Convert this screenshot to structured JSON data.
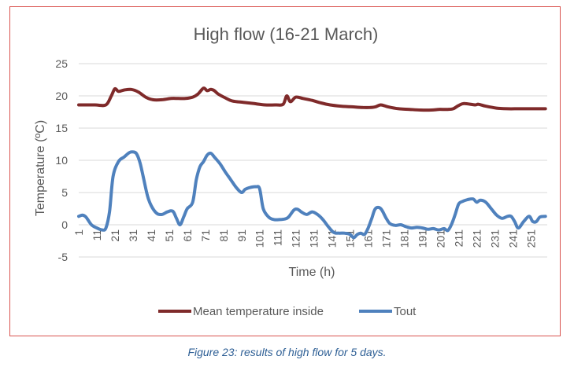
{
  "caption": "Figure 23: results of high flow for 5 days.",
  "chart_data": {
    "type": "line",
    "title": "High flow (16-21 March)",
    "xlabel": "Time (h)",
    "ylabel": "Temperature (ºC)",
    "xlim": [
      1,
      260
    ],
    "ylim": [
      -5,
      25
    ],
    "yticks": [
      -5,
      0,
      5,
      10,
      15,
      20,
      25
    ],
    "xticks": [
      1,
      11,
      21,
      31,
      41,
      51,
      61,
      71,
      81,
      91,
      101,
      111,
      121,
      131,
      141,
      151,
      161,
      171,
      181,
      191,
      201,
      211,
      221,
      231,
      241,
      251
    ],
    "grid": "horizontal",
    "legend": "bottom",
    "series": [
      {
        "name": "Mean temperature inside",
        "color": "#7f2a2a",
        "x": [
          1,
          10,
          16,
          19,
          21,
          23,
          26,
          30,
          34,
          38,
          42,
          47,
          52,
          56,
          60,
          64,
          67,
          70,
          72,
          74,
          76,
          78,
          82,
          86,
          92,
          98,
          104,
          110,
          114,
          116,
          118,
          121,
          125,
          130,
          135,
          140,
          146,
          152,
          158,
          162,
          165,
          168,
          172,
          178,
          184,
          190,
          196,
          200,
          205,
          208,
          211,
          214,
          220,
          222,
          226,
          232,
          238,
          244,
          250,
          256,
          259
        ],
        "values": [
          18.6,
          18.6,
          18.6,
          20.0,
          21.1,
          20.7,
          20.9,
          21.0,
          20.6,
          19.8,
          19.4,
          19.4,
          19.6,
          19.6,
          19.6,
          19.8,
          20.3,
          21.2,
          20.8,
          21.0,
          20.8,
          20.3,
          19.7,
          19.2,
          19.0,
          18.8,
          18.6,
          18.6,
          18.7,
          20.0,
          19.1,
          19.8,
          19.6,
          19.3,
          18.9,
          18.6,
          18.4,
          18.3,
          18.2,
          18.2,
          18.3,
          18.6,
          18.3,
          18.0,
          17.9,
          17.8,
          17.8,
          17.9,
          17.9,
          18.0,
          18.5,
          18.8,
          18.6,
          18.7,
          18.4,
          18.1,
          18.0,
          18.0,
          18.0,
          18.0,
          18.0
        ]
      },
      {
        "name": "Tout",
        "color": "#4f81bd",
        "x": [
          1,
          3,
          5,
          8,
          11,
          14,
          16,
          18,
          20,
          23,
          26,
          29,
          31,
          33,
          35,
          37,
          39,
          41,
          44,
          47,
          50,
          53,
          55,
          57,
          59,
          61,
          64,
          66,
          68,
          70,
          72,
          74,
          76,
          79,
          82,
          85,
          88,
          91,
          93,
          96,
          99,
          101,
          103,
          106,
          109,
          112,
          115,
          117,
          120,
          122,
          124,
          127,
          130,
          133,
          136,
          139,
          142,
          145,
          148,
          151,
          153,
          155,
          157,
          159,
          161,
          163,
          165,
          168,
          171,
          173,
          176,
          179,
          182,
          185,
          188,
          191,
          194,
          197,
          200,
          203,
          205,
          207,
          209,
          211,
          213,
          216,
          219,
          221,
          223,
          226,
          229,
          232,
          235,
          238,
          240,
          242,
          244,
          247,
          250,
          252,
          254,
          256,
          259
        ],
        "values": [
          1.3,
          1.5,
          1.2,
          0.0,
          -0.5,
          -0.8,
          -0.5,
          2.0,
          7.5,
          9.8,
          10.5,
          11.2,
          11.3,
          11.0,
          9.5,
          7.0,
          4.5,
          3.0,
          1.8,
          1.6,
          2.0,
          2.1,
          1.0,
          0.0,
          1.2,
          2.5,
          3.5,
          7.0,
          9.0,
          9.8,
          10.8,
          11.1,
          10.5,
          9.5,
          8.2,
          7.0,
          5.8,
          5.0,
          5.5,
          5.8,
          5.9,
          5.6,
          2.5,
          1.2,
          0.8,
          0.8,
          0.9,
          1.2,
          2.3,
          2.4,
          2.0,
          1.6,
          2.0,
          1.6,
          0.8,
          -0.3,
          -1.2,
          -1.3,
          -1.3,
          -1.5,
          -2.0,
          -1.5,
          -1.3,
          -1.5,
          -0.5,
          1.0,
          2.5,
          2.5,
          1.0,
          0.2,
          -0.1,
          0.0,
          -0.3,
          -0.5,
          -0.4,
          -0.5,
          -0.7,
          -0.6,
          -0.8,
          -0.6,
          -0.9,
          0.0,
          1.5,
          3.2,
          3.6,
          3.9,
          4.0,
          3.5,
          3.8,
          3.5,
          2.5,
          1.5,
          1.0,
          1.3,
          1.3,
          0.5,
          -0.5,
          0.5,
          1.3,
          0.5,
          0.5,
          1.2,
          1.3
        ]
      }
    ]
  }
}
